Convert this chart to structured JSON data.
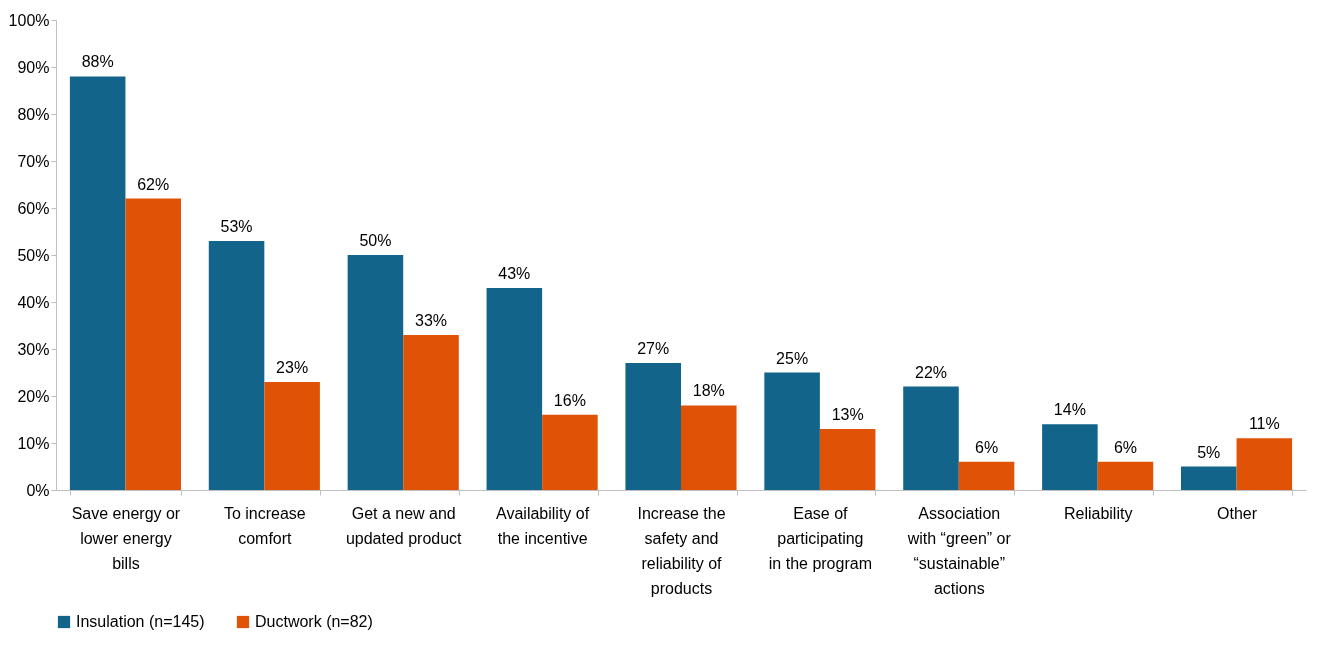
{
  "chart_data": {
    "type": "bar",
    "categories": [
      "Save energy or lower energy bills",
      "To increase comfort",
      "Get a new and updated product",
      "Availability of the incentive",
      "Increase the safety and reliability of products",
      "Ease of participating in the program",
      "Association with “green” or “sustainable” actions",
      "Reliability",
      "Other"
    ],
    "series": [
      {
        "name": "Insulation (n=145)",
        "color": "#12648a",
        "values": [
          88,
          53,
          50,
          43,
          27,
          25,
          22,
          14,
          5
        ],
        "value_labels": [
          "88%",
          "53%",
          "50%",
          "43%",
          "27%",
          "25%",
          "22%",
          "14%",
          "5%"
        ]
      },
      {
        "name": "Ductwork (n=82)",
        "color": "#e05206",
        "values": [
          62,
          23,
          33,
          16,
          18,
          13,
          6,
          6,
          11
        ],
        "value_labels": [
          "62%",
          "23%",
          "33%",
          "16%",
          "18%",
          "13%",
          "6%",
          "6%",
          "11%"
        ]
      }
    ],
    "ylim": [
      0,
      100
    ],
    "yticks": [
      {
        "value": 0,
        "label": "0%"
      },
      {
        "value": 10,
        "label": "10%"
      },
      {
        "value": 20,
        "label": "20%"
      },
      {
        "value": 30,
        "label": "30%"
      },
      {
        "value": 40,
        "label": "40%"
      },
      {
        "value": 50,
        "label": "50%"
      },
      {
        "value": 60,
        "label": "60%"
      },
      {
        "value": 70,
        "label": "70%"
      },
      {
        "value": 80,
        "label": "80%"
      },
      {
        "value": 90,
        "label": "90%"
      },
      {
        "value": 100,
        "label": "100%"
      }
    ],
    "grid": false,
    "legend": "bottom"
  }
}
